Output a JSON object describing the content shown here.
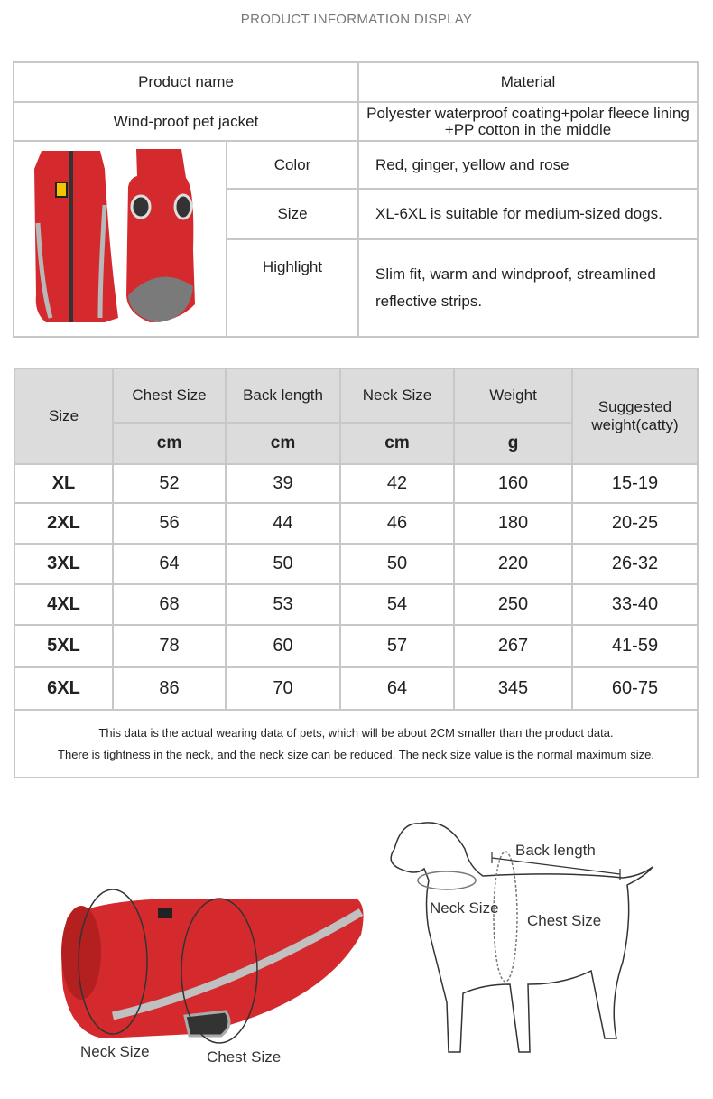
{
  "title": "PRODUCT INFORMATION DISPLAY",
  "info": {
    "product_name_label": "Product name",
    "material_label": "Material",
    "product_name": "Wind-proof pet jacket",
    "material_line1": "Polyester waterproof coating+polar fleece lining",
    "material_line2": "+PP cotton in the middle",
    "rows": [
      {
        "label": "Color",
        "value": "Red, ginger, yellow and rose"
      },
      {
        "label": "Size",
        "value": "XL-6XL is suitable for medium-sized dogs."
      },
      {
        "label": "Highlight",
        "value": "Slim fit, warm and windproof, streamlined reflective strips."
      }
    ]
  },
  "size_table": {
    "headers": [
      "Size",
      "Chest Size",
      "Back length",
      "Neck Size",
      "Weight",
      "Suggested weight(catty)"
    ],
    "units": [
      "cm",
      "cm",
      "cm",
      "g"
    ],
    "rows": [
      [
        "XL",
        "52",
        "39",
        "42",
        "160",
        "15-19"
      ],
      [
        "2XL",
        "56",
        "44",
        "46",
        "180",
        "20-25"
      ],
      [
        "3XL",
        "64",
        "50",
        "50",
        "220",
        "26-32"
      ],
      [
        "4XL",
        "68",
        "53",
        "54",
        "250",
        "33-40"
      ],
      [
        "5XL",
        "78",
        "60",
        "57",
        "267",
        "41-59"
      ],
      [
        "6XL",
        "86",
        "70",
        "64",
        "345",
        "60-75"
      ]
    ],
    "note_line1": "This data is the actual wearing data of pets, which will be about 2CM smaller than the product data.",
    "note_line2": "There is tightness in the neck, and the neck size can be reduced. The neck size value is the normal maximum size."
  },
  "diagram": {
    "jacket_neck": "Neck Size",
    "jacket_chest": "Chest Size",
    "dog_back": "Back length",
    "dog_neck": "Neck Size",
    "dog_chest": "Chest Size"
  },
  "colors": {
    "jacket": "#d42a2e",
    "reflective": "#b0b0b0",
    "header_bg": "#dcdcdc"
  }
}
